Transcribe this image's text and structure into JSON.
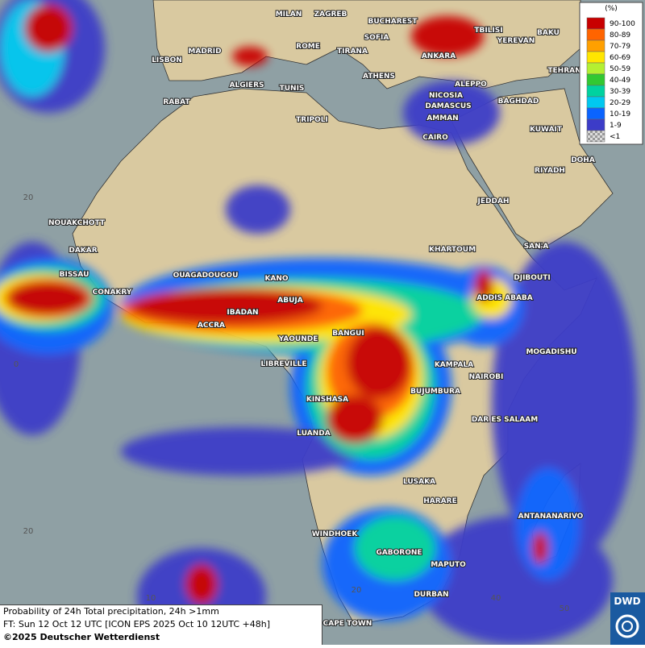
{
  "legend": {
    "unit": "(%)",
    "entries": [
      {
        "label": "90-100",
        "color": "#c80000"
      },
      {
        "label": "80-89",
        "color": "#ff6400"
      },
      {
        "label": "70-79",
        "color": "#ffa000"
      },
      {
        "label": "60-69",
        "color": "#ffe600"
      },
      {
        "label": "50-59",
        "color": "#b4f032"
      },
      {
        "label": "40-49",
        "color": "#32c832"
      },
      {
        "label": "30-39",
        "color": "#00d2a0"
      },
      {
        "label": "20-29",
        "color": "#00c8f0"
      },
      {
        "label": "10-19",
        "color": "#0a64ff"
      },
      {
        "label": "1-9",
        "color": "#3c3cc8"
      },
      {
        "label": "<1",
        "color": "#a0a0a0"
      }
    ]
  },
  "cities": [
    "MILAN",
    "ZAGREB",
    "BUCHAREST",
    "TBILISI",
    "BAKU",
    "MADRID",
    "ROME",
    "SOFIA",
    "YEREVAN",
    "LISBON",
    "TIRANA",
    "ANKARA",
    "ALGIERS",
    "TUNIS",
    "ATHENS",
    "ALEPPO",
    "TEHRAN",
    "RABAT",
    "NICOSIA",
    "BAGHDAD",
    "TRIPOLI",
    "DAMASCUS",
    "AMMAN",
    "KUWAIT",
    "CAIRO",
    "DOHA",
    "RIYADH",
    "JEDDAH",
    "NOUAKCHOTT",
    "KHARTOUM",
    "SAN'A",
    "DAKAR",
    "BISSAU",
    "OUAGADOUGOU",
    "KANO",
    "DJIBOUTI",
    "CONAKRY",
    "ABUJA",
    "ADDIS ABABA",
    "IBADAN",
    "ACCRA",
    "BANGUI",
    "YAOUNDE",
    "MOGADISHU",
    "LIBREVILLE",
    "KAMPALA",
    "NAIROBI",
    "BUJUMBURA",
    "KINSHASA",
    "DAR ES SALAAM",
    "LUANDA",
    "LUSAKA",
    "HARARE",
    "ANTANANARIVO",
    "WINDHOEK",
    "GABORONE",
    "MAPUTO",
    "DURBAN",
    "CAPE TOWN"
  ],
  "grid_labels": [
    "20",
    "0",
    "20",
    "10",
    "20",
    "40",
    "50"
  ],
  "footer": {
    "title": "Probability of 24h Total precipitation, 24h >1mm",
    "forecast": "FT: Sun 12 Oct 12 UTC [ICON EPS 2025 Oct 10 12UTC +48h]",
    "copyright": "©2025 Deutscher Wetterdienst"
  },
  "logo": "DWD"
}
